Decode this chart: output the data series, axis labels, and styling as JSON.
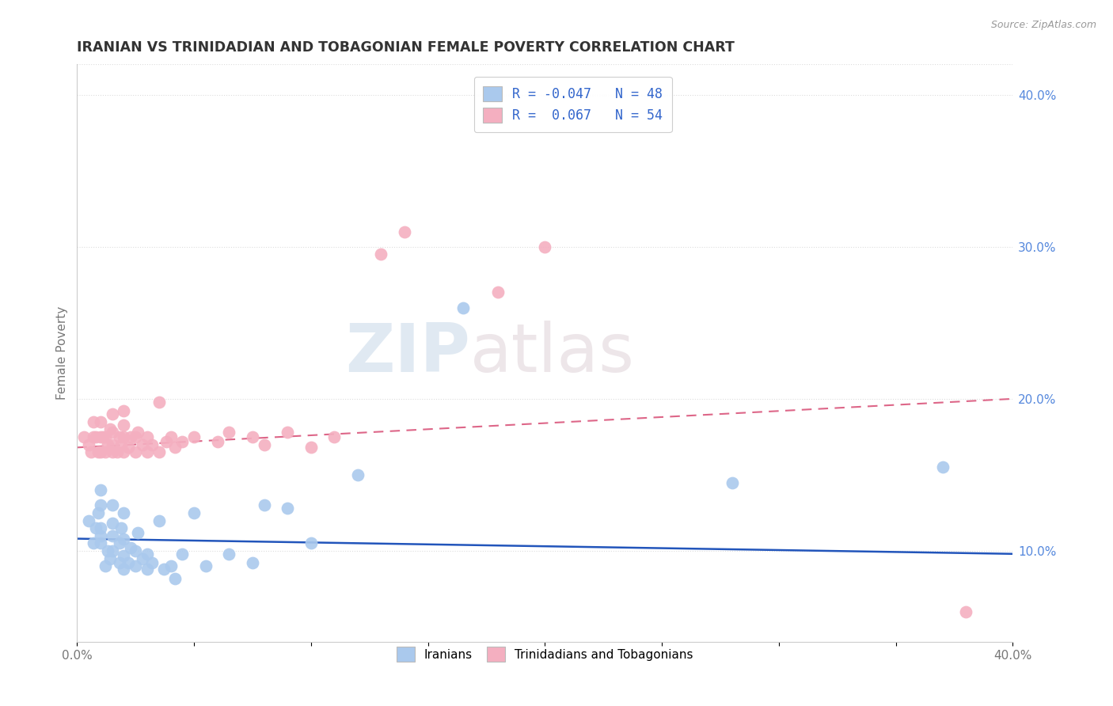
{
  "title": "IRANIAN VS TRINIDADIAN AND TOBAGONIAN FEMALE POVERTY CORRELATION CHART",
  "source_text": "Source: ZipAtlas.com",
  "ylabel": "Female Poverty",
  "xlim": [
    0.0,
    0.4
  ],
  "ylim": [
    0.04,
    0.42
  ],
  "xticks": [
    0.0,
    0.05,
    0.1,
    0.15,
    0.2,
    0.25,
    0.3,
    0.35,
    0.4
  ],
  "xticklabels": [
    "0.0%",
    "",
    "",
    "",
    "",
    "",
    "",
    "",
    "40.0%"
  ],
  "yticks_right": [
    0.1,
    0.2,
    0.3,
    0.4
  ],
  "ytick_labels_right": [
    "10.0%",
    "20.0%",
    "30.0%",
    "40.0%"
  ],
  "legend_R_blue": "-0.047",
  "legend_N_blue": "48",
  "legend_R_pink": "0.067",
  "legend_N_pink": "54",
  "blue_color": "#aac9ed",
  "pink_color": "#f4afc0",
  "blue_line_color": "#2255bb",
  "pink_line_color": "#dd6688",
  "watermark_zip": "ZIP",
  "watermark_atlas": "atlas",
  "iranians_x": [
    0.005,
    0.007,
    0.008,
    0.009,
    0.01,
    0.01,
    0.01,
    0.01,
    0.01,
    0.012,
    0.013,
    0.014,
    0.015,
    0.015,
    0.015,
    0.015,
    0.018,
    0.018,
    0.019,
    0.02,
    0.02,
    0.02,
    0.02,
    0.022,
    0.023,
    0.025,
    0.025,
    0.026,
    0.028,
    0.03,
    0.03,
    0.032,
    0.035,
    0.037,
    0.04,
    0.042,
    0.045,
    0.05,
    0.055,
    0.065,
    0.075,
    0.08,
    0.09,
    0.1,
    0.12,
    0.165,
    0.28,
    0.37
  ],
  "iranians_y": [
    0.12,
    0.105,
    0.115,
    0.125,
    0.105,
    0.11,
    0.115,
    0.13,
    0.14,
    0.09,
    0.1,
    0.095,
    0.1,
    0.11,
    0.118,
    0.13,
    0.092,
    0.105,
    0.115,
    0.088,
    0.097,
    0.108,
    0.125,
    0.092,
    0.102,
    0.09,
    0.1,
    0.112,
    0.095,
    0.088,
    0.098,
    0.092,
    0.12,
    0.088,
    0.09,
    0.082,
    0.098,
    0.125,
    0.09,
    0.098,
    0.092,
    0.13,
    0.128,
    0.105,
    0.15,
    0.26,
    0.145,
    0.155
  ],
  "trinis_x": [
    0.003,
    0.005,
    0.006,
    0.007,
    0.007,
    0.008,
    0.009,
    0.01,
    0.01,
    0.01,
    0.011,
    0.012,
    0.012,
    0.013,
    0.014,
    0.015,
    0.015,
    0.015,
    0.015,
    0.017,
    0.018,
    0.019,
    0.02,
    0.02,
    0.02,
    0.02,
    0.022,
    0.023,
    0.025,
    0.025,
    0.026,
    0.028,
    0.03,
    0.03,
    0.032,
    0.035,
    0.035,
    0.038,
    0.04,
    0.042,
    0.045,
    0.05,
    0.06,
    0.065,
    0.075,
    0.08,
    0.09,
    0.1,
    0.11,
    0.13,
    0.14,
    0.18,
    0.2,
    0.38
  ],
  "trinis_y": [
    0.175,
    0.17,
    0.165,
    0.175,
    0.185,
    0.175,
    0.165,
    0.165,
    0.175,
    0.185,
    0.175,
    0.165,
    0.175,
    0.17,
    0.18,
    0.165,
    0.17,
    0.178,
    0.19,
    0.165,
    0.175,
    0.17,
    0.165,
    0.175,
    0.183,
    0.192,
    0.168,
    0.175,
    0.165,
    0.175,
    0.178,
    0.17,
    0.165,
    0.175,
    0.17,
    0.165,
    0.198,
    0.172,
    0.175,
    0.168,
    0.172,
    0.175,
    0.172,
    0.178,
    0.175,
    0.17,
    0.178,
    0.168,
    0.175,
    0.295,
    0.31,
    0.27,
    0.3,
    0.06
  ],
  "blue_trendline_x": [
    0.0,
    0.4
  ],
  "blue_trendline_y": [
    0.108,
    0.098
  ],
  "pink_trendline_x": [
    0.0,
    0.4
  ],
  "pink_trendline_y": [
    0.168,
    0.2
  ]
}
